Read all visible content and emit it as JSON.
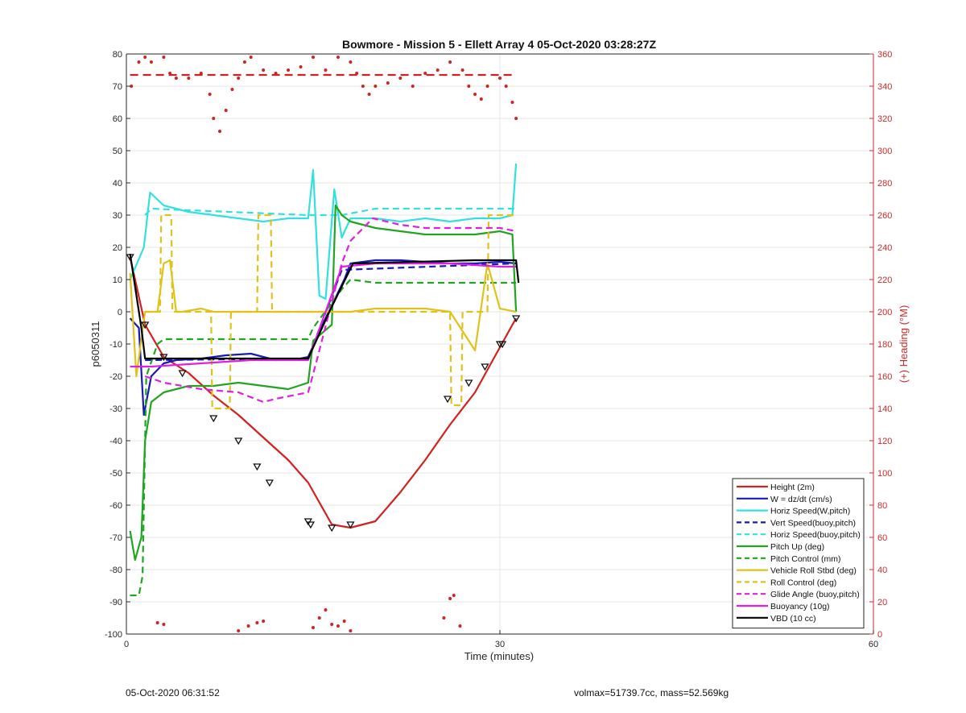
{
  "footer": {
    "timestamp": "05-Oct-2020 06:31:52",
    "mass_info": "volmax=51739.7cc, mass=52.569kg"
  },
  "colors": {
    "height": "#d42020",
    "w": "#1a1ab4",
    "horiz_w": "#33e0e0",
    "vert_buoy": "#1a1ab4",
    "horiz_buoy": "#33e0e0",
    "pitch_up": "#1fa51f",
    "pitch_control": "#1fa51f",
    "roll": "#e0c21a",
    "roll_control": "#e0c21a",
    "glide": "#e020e0",
    "buoyancy": "#e020e0",
    "vbd": "#000000",
    "heading": "#d42020"
  },
  "chart_data": {
    "type": "line",
    "title": "Bowmore - Mission 5 - Ellett Array 4 05-Oct-2020 03:28:27Z",
    "xlabel": "Time (minutes)",
    "ylabel": "p6050311",
    "y2label": "(+) Heading (°M)",
    "xlim": [
      0,
      60
    ],
    "ylim": [
      -100,
      80
    ],
    "y2lim": [
      0,
      360
    ],
    "xticks": [
      0,
      30,
      60
    ],
    "yticks": [
      -100,
      -90,
      -80,
      -70,
      -60,
      -50,
      -40,
      -30,
      -20,
      -10,
      0,
      10,
      20,
      30,
      40,
      50,
      60,
      70,
      80
    ],
    "y2ticks": [
      0,
      20,
      40,
      60,
      80,
      100,
      120,
      140,
      160,
      180,
      200,
      220,
      240,
      260,
      280,
      300,
      320,
      340,
      360
    ],
    "grid": true,
    "legend_position": "bottom-right",
    "series": [
      {
        "name": "Height (2m)",
        "key": "height",
        "style": "solid",
        "x": [
          0.3,
          1.5,
          3,
          5,
          7,
          9,
          11,
          13,
          14.6,
          16.5,
          18,
          20,
          22,
          24,
          26,
          28,
          30,
          31.3
        ],
        "y": [
          17,
          -4,
          -14,
          -19,
          -26,
          -32,
          -39,
          -46,
          -53,
          -66,
          -67,
          -65,
          -56,
          -46,
          -35,
          -25,
          -11,
          -2
        ]
      },
      {
        "name": "W = dz/dt (cm/s)",
        "key": "w",
        "style": "solid",
        "x": [
          0.3,
          1,
          1.4,
          2,
          3,
          4,
          6,
          8,
          10,
          12,
          14,
          14.6,
          16,
          17.5,
          18,
          20,
          22,
          24,
          26,
          28,
          30,
          31.3
        ],
        "y": [
          -2,
          -5,
          -32,
          -20,
          -16,
          -15,
          -14.5,
          -13.5,
          -13,
          -15,
          -14.5,
          -14,
          -2,
          10,
          15,
          16,
          16,
          15.5,
          15,
          15,
          15.5,
          15
        ]
      },
      {
        "name": "Horiz Speed(W,pitch)",
        "key": "horiz_w",
        "style": "solid",
        "x": [
          0.3,
          1.4,
          1.9,
          3,
          5,
          7,
          9,
          11,
          13,
          14.6,
          15,
          15.5,
          16,
          16.7,
          17.3,
          18,
          20,
          22,
          24,
          26,
          28,
          30,
          31,
          31.3
        ],
        "y": [
          10,
          20,
          37,
          33,
          31,
          30,
          29,
          28,
          29,
          29,
          44,
          5,
          4,
          38,
          23,
          29,
          29,
          28,
          29,
          28,
          29,
          29,
          30,
          46
        ]
      },
      {
        "name": "Vert Speed(buoy,pitch)",
        "key": "vert_buoy",
        "style": "dashed",
        "x": [
          1.5,
          14.6,
          17.3,
          31.3
        ],
        "y": [
          -15,
          -14.5,
          13,
          15
        ]
      },
      {
        "name": "Horiz Speed(buoy,pitch)",
        "key": "horiz_buoy",
        "style": "dashed",
        "x": [
          1.5,
          2,
          14.6,
          17.3,
          20,
          31.3
        ],
        "y": [
          30,
          32,
          30,
          30,
          32,
          32
        ]
      },
      {
        "name": "Pitch Up (deg)",
        "key": "pitch_up",
        "style": "solid",
        "x": [
          0.3,
          0.7,
          1.2,
          1.5,
          2,
          3,
          5,
          7,
          9,
          11,
          13,
          14.6,
          15,
          16.5,
          16.8,
          17.3,
          18,
          20,
          22,
          24,
          26,
          28,
          30,
          31,
          31.3
        ],
        "y": [
          -68,
          -77,
          -70,
          -40,
          -28,
          -25,
          -23,
          -23,
          -22,
          -23,
          -24,
          -22,
          -9,
          -4,
          33,
          30,
          28,
          26,
          25,
          24,
          24,
          24,
          25,
          24,
          0
        ]
      },
      {
        "name": "Pitch Control (mm)",
        "key": "pitch_control",
        "style": "dashed",
        "x": [
          0.3,
          1,
          1.3,
          1.6,
          2.5,
          3,
          14.6,
          15,
          17.3,
          18,
          20,
          31.3
        ],
        "y": [
          -88,
          -88,
          -82,
          -20,
          -10,
          -8.5,
          -8.5,
          -5,
          7,
          10,
          9,
          9
        ]
      },
      {
        "name": "Vehicle Roll Stbd (deg)",
        "key": "roll",
        "style": "solid",
        "x": [
          0.3,
          0.8,
          1.5,
          2.5,
          3,
          3.5,
          4,
          4.5,
          6,
          7,
          9,
          12,
          14.6,
          16,
          18,
          20,
          24,
          26,
          28,
          29,
          30,
          31.3
        ],
        "y": [
          12,
          -20,
          0,
          0,
          15,
          16,
          0,
          0,
          1,
          0,
          0,
          0,
          0,
          0,
          0,
          1,
          1,
          0,
          -12,
          15,
          1,
          0
        ]
      },
      {
        "name": "Roll Control (deg)",
        "key": "roll_control",
        "style": "dashed",
        "x": [
          1.5,
          2.7,
          2.8,
          3.6,
          3.7,
          6.8,
          6.9,
          8.3,
          8.4,
          10.5,
          10.6,
          11.6,
          11.7,
          26,
          26.1,
          26.9,
          27,
          29,
          29.1,
          31.3
        ],
        "y": [
          0,
          0,
          30,
          30,
          0,
          0,
          -30,
          -30,
          0,
          0,
          30,
          30,
          0,
          0,
          -29,
          -29,
          0,
          0,
          30,
          30
        ]
      },
      {
        "name": "Glide Angle (buoy,pitch)",
        "key": "glide",
        "style": "dashed",
        "x": [
          1.5,
          3,
          6,
          9,
          11,
          12,
          14.6,
          15.3,
          17.3,
          18,
          19.8,
          22,
          24,
          26,
          28,
          30,
          31.3
        ],
        "y": [
          -20,
          -22,
          -24,
          -25,
          -28,
          -27,
          -25,
          -15,
          15,
          22,
          29,
          27,
          26,
          26,
          26,
          26,
          25
        ]
      },
      {
        "name": "Buoyancy (10g)",
        "key": "buoyancy",
        "style": "solid",
        "x": [
          0.3,
          1.3,
          2,
          4,
          6,
          8,
          10,
          12,
          14.6,
          17.3,
          20,
          22,
          24,
          26,
          28,
          30,
          31.3
        ],
        "y": [
          -17,
          -17,
          -17,
          -16.5,
          -16,
          -15.5,
          -15,
          -15,
          -15,
          14,
          15,
          15,
          15,
          15,
          14.5,
          14,
          14
        ]
      },
      {
        "name": "VBD (10 cc)",
        "key": "vbd",
        "style": "solid",
        "x": [
          0.3,
          1.2,
          1.5,
          2,
          14.6,
          16.3,
          18.2,
          28,
          31.3,
          31.5
        ],
        "y": [
          18,
          -5,
          -14.5,
          -14.5,
          -14.5,
          0,
          15,
          16,
          16,
          9
        ]
      },
      {
        "name": "Heading",
        "key": "heading",
        "style": "dots",
        "axis": "right",
        "x": [
          0.4,
          1,
          1.5,
          2,
          3,
          3.5,
          4,
          5,
          6,
          6.7,
          7,
          7.5,
          8,
          8.5,
          9,
          9.5,
          10,
          11,
          12,
          13,
          14,
          15,
          16,
          17,
          18,
          18.5,
          19,
          19.5,
          20,
          21,
          22,
          23,
          24,
          25,
          26,
          27,
          27.5,
          28,
          28.5,
          29,
          30,
          30.5,
          31,
          31.3
        ],
        "y": [
          340,
          355,
          358,
          355,
          358,
          348,
          345,
          345,
          348,
          335,
          320,
          312,
          325,
          338,
          345,
          355,
          358,
          350,
          348,
          350,
          352,
          358,
          350,
          358,
          355,
          348,
          340,
          335,
          340,
          342,
          345,
          340,
          348,
          350,
          355,
          350,
          340,
          335,
          332,
          340,
          345,
          340,
          330,
          320
        ]
      },
      {
        "name": "Heading clusters",
        "key": "heading",
        "style": "dots",
        "axis": "right",
        "x": [
          2.5,
          3,
          9,
          9.8,
          10.5,
          11,
          15,
          15.5,
          16,
          16.5,
          17,
          17.5,
          18,
          25.5,
          26,
          26.3,
          26.8
        ],
        "y": [
          7,
          6,
          2,
          5,
          7,
          8,
          4,
          10,
          15,
          6,
          5,
          8,
          2,
          10,
          22,
          24,
          5
        ]
      },
      {
        "name": "Heading target",
        "key": "heading",
        "style": "redline",
        "axis": "right",
        "x": [
          0.3,
          31.3
        ],
        "y": [
          347,
          347
        ]
      }
    ],
    "markers": {
      "x": [
        0.3,
        1.5,
        3,
        4.5,
        7,
        9,
        10.5,
        11.5,
        14.6,
        14.8,
        16.5,
        18,
        25.8,
        27.5,
        28.8,
        30,
        30.2,
        31.3
      ],
      "y": [
        17,
        -4,
        -14,
        -19,
        -33,
        -40,
        -48,
        -53,
        -65,
        -66,
        -67,
        -66,
        -27,
        -22,
        -17,
        -10,
        -10,
        -2
      ]
    },
    "legend": [
      {
        "label": "Height (2m)",
        "key": "height",
        "style": "solid"
      },
      {
        "label": "W = dz/dt (cm/s)",
        "key": "w",
        "style": "solid"
      },
      {
        "label": "Horiz Speed(W,pitch)",
        "key": "horiz_w",
        "style": "solid"
      },
      {
        "label": "Vert Speed(buoy,pitch)",
        "key": "vert_buoy",
        "style": "dashed"
      },
      {
        "label": "Horiz Speed(buoy,pitch)",
        "key": "horiz_buoy",
        "style": "dashed"
      },
      {
        "label": "Pitch Up (deg)",
        "key": "pitch_up",
        "style": "solid"
      },
      {
        "label": "Pitch Control (mm)",
        "key": "pitch_control",
        "style": "dashed"
      },
      {
        "label": "Vehicle Roll Stbd (deg)",
        "key": "roll",
        "style": "solid"
      },
      {
        "label": "Roll Control (deg)",
        "key": "roll_control",
        "style": "dashed"
      },
      {
        "label": "Glide Angle (buoy,pitch)",
        "key": "glide",
        "style": "dashed"
      },
      {
        "label": "Buoyancy (10g)",
        "key": "buoyancy",
        "style": "solid"
      },
      {
        "label": "VBD (10 cc)",
        "key": "vbd",
        "style": "solid"
      }
    ]
  }
}
